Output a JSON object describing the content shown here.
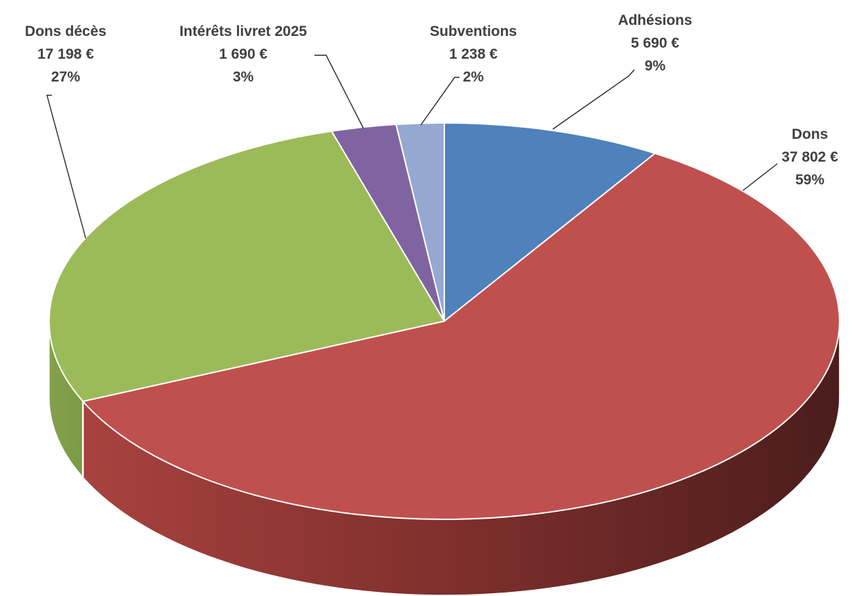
{
  "chart_data": {
    "type": "pie",
    "style": "3d",
    "title": "",
    "unit": "€",
    "slices": [
      {
        "name": "Adhésions",
        "value": 5690,
        "value_label": "5 690 €",
        "percent": 9,
        "percent_label": "9%",
        "color": "#4F81BD",
        "side_color": "#2C4D75"
      },
      {
        "name": "Dons",
        "value": 37802,
        "value_label": "37 802 €",
        "percent": 59,
        "percent_label": "59%",
        "color": "#C0504D",
        "side_color": "#7E2A28"
      },
      {
        "name": "Dons décès",
        "value": 17198,
        "value_label": "17 198 €",
        "percent": 27,
        "percent_label": "27%",
        "color": "#9BBB59",
        "side_color": "#7A9A44"
      },
      {
        "name": "Intérêts livret 2025",
        "value": 1690,
        "value_label": "1 690 €",
        "percent": 3,
        "percent_label": "3%",
        "color": "#8064A2",
        "side_color": "#5C4776"
      },
      {
        "name": "Subventions",
        "value": 1238,
        "value_label": "1 238 €",
        "percent": 2,
        "percent_label": "2%",
        "color": "#95A9D0",
        "side_color": "#6B7FA6"
      }
    ],
    "legend": "none"
  }
}
